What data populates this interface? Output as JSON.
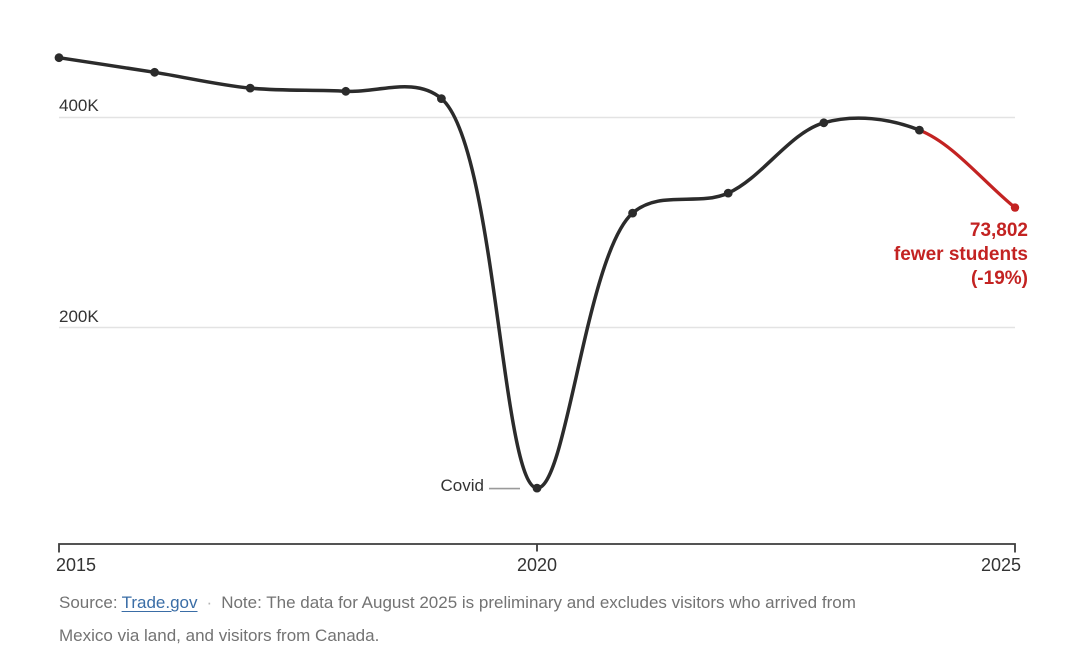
{
  "chart_data": {
    "type": "line",
    "x": [
      2015,
      2016,
      2017,
      2018,
      2019,
      2020,
      2021,
      2022,
      2023,
      2024,
      2025
    ],
    "values": [
      457000,
      443000,
      428000,
      425000,
      418000,
      47000,
      309000,
      328000,
      395000,
      388000,
      314198
    ],
    "series_note": "values estimated from gridlines; final point = 2024 value minus 73,802 (-19%)",
    "x_ticks": [
      "2015",
      "2020",
      "2025"
    ],
    "y_ticks": [
      {
        "value": 400000,
        "label": "400K"
      },
      {
        "value": 200000,
        "label": "200K"
      }
    ],
    "ylim": [
      0,
      470000
    ],
    "grid": "horizontal-only",
    "legend": "none",
    "highlight_last_segment": true,
    "annotations": {
      "covid": {
        "label": "Covid",
        "year": 2020
      },
      "final_drop": {
        "lines": [
          "73,802",
          "fewer students",
          "(-19%)"
        ]
      }
    },
    "colors": {
      "line": "#2b2b2b",
      "point": "#2b2b2b",
      "highlight": "#c32322",
      "gridline": "#e3e3e3",
      "axis": "#3d3d3d",
      "covid_leader": "#9a9a9a"
    }
  },
  "footer": {
    "source_prefix": "Source:",
    "source_link": "Trade.gov",
    "separator": "·",
    "note_line1": "Note: The data for August 2025 is preliminary and excludes visitors who arrived from",
    "note_line2": "Mexico via land, and visitors from Canada."
  }
}
